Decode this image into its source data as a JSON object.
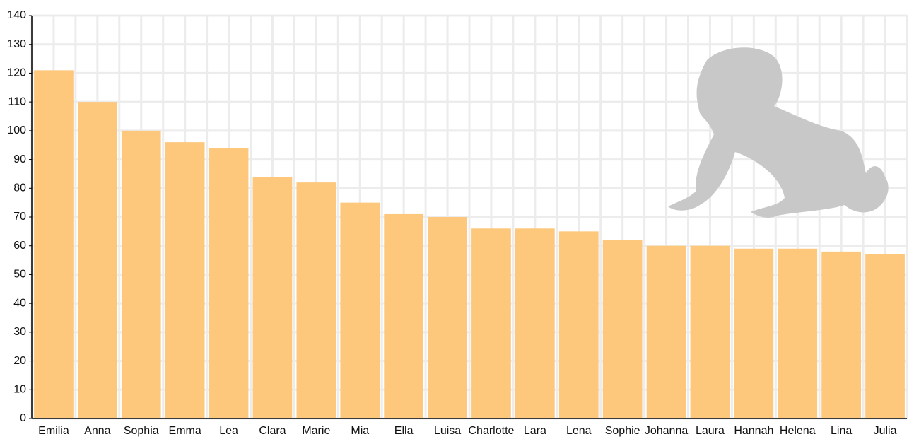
{
  "chart_data": {
    "type": "bar",
    "categories": [
      "Emilia",
      "Anna",
      "Sophia",
      "Emma",
      "Lea",
      "Clara",
      "Marie",
      "Mia",
      "Ella",
      "Luisa",
      "Charlotte",
      "Lara",
      "Lena",
      "Sophie",
      "Johanna",
      "Laura",
      "Hannah",
      "Helena",
      "Lina",
      "Julia"
    ],
    "values": [
      121,
      110,
      100,
      96,
      94,
      84,
      82,
      75,
      71,
      70,
      66,
      66,
      65,
      62,
      60,
      60,
      59,
      59,
      58,
      57
    ],
    "color": "#fdc77c",
    "ylim": [
      0,
      140
    ],
    "yticks": [
      0,
      10,
      20,
      30,
      40,
      50,
      60,
      70,
      80,
      90,
      100,
      110,
      120,
      130,
      140
    ],
    "grid": true
  }
}
